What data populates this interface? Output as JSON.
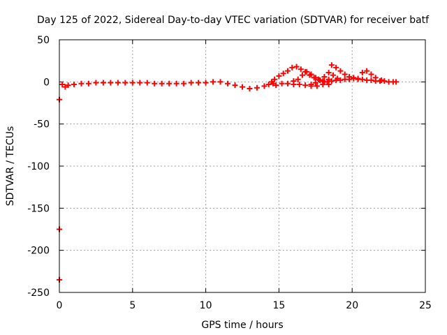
{
  "chart_data": {
    "type": "scatter",
    "title": "Day 125 of 2022, Sidereal Day-to-day VTEC variation (SDTVAR) for receiver batf",
    "xlabel": "GPS time / hours",
    "ylabel": "SDTVAR / TECUs",
    "xlim": [
      0,
      25
    ],
    "ylim": [
      -250,
      50
    ],
    "xticks": [
      0,
      5,
      10,
      15,
      20,
      25
    ],
    "yticks": [
      -250,
      -200,
      -150,
      -100,
      -50,
      0,
      50
    ],
    "grid": true,
    "legend": "none",
    "series_color": "#ff0000",
    "series": [
      {
        "x": [
          0.0,
          0.0,
          0.0
        ],
        "y": [
          -21,
          -175,
          -235
        ]
      },
      {
        "x": [
          0.2,
          0.4,
          0.6,
          1.0,
          1.5,
          2.0,
          2.5,
          3.0,
          3.5,
          4.0,
          4.5,
          5.0,
          5.5,
          6.0,
          6.5,
          7.0,
          7.5,
          8.0,
          8.5,
          9.0,
          9.5,
          10.0,
          10.5,
          11.0,
          11.5,
          12.0,
          12.5,
          13.0,
          13.5,
          14.0,
          14.3,
          14.6
        ],
        "y": [
          -3,
          -6,
          -4,
          -3,
          -2,
          -2,
          -1,
          -1,
          -1,
          -1,
          -1,
          -1,
          -1,
          -1,
          -2,
          -2,
          -2,
          -2,
          -2,
          -1,
          -1,
          -1,
          0,
          0,
          -2,
          -4,
          -6,
          -8,
          -7,
          -5,
          -3,
          -2
        ]
      },
      {
        "x": [
          14.5,
          14.7,
          15.0,
          15.3,
          15.6,
          15.9,
          16.2,
          16.5,
          16.8,
          17.1,
          17.4,
          17.7,
          18.0,
          18.3,
          18.6,
          18.9,
          19.2,
          19.5,
          19.8,
          20.1,
          20.4,
          20.7,
          21.0,
          21.3,
          21.6,
          21.9,
          22.2,
          22.5,
          22.8,
          23.0
        ],
        "y": [
          0,
          3,
          7,
          10,
          13,
          17,
          18,
          15,
          12,
          8,
          5,
          3,
          1,
          0,
          1,
          2,
          2,
          3,
          3,
          4,
          3,
          3,
          2,
          2,
          1,
          1,
          1,
          0,
          0,
          0
        ]
      },
      {
        "x": [
          14.8,
          15.2,
          15.6,
          16.0,
          16.4,
          16.8,
          17.2,
          17.6,
          18.0,
          18.4,
          18.6,
          18.9,
          19.2,
          19.5,
          19.8,
          20.1,
          20.4,
          20.7,
          21.0,
          21.3,
          21.6,
          22.0
        ],
        "y": [
          -4,
          -2,
          -2,
          -3,
          -3,
          -4,
          -5,
          -5,
          -3,
          3,
          20,
          17,
          13,
          9,
          6,
          5,
          4,
          11,
          13,
          9,
          5,
          2
        ]
      },
      {
        "x": [
          16.0,
          16.3,
          16.6,
          16.9,
          17.2,
          17.5,
          17.8,
          18.1,
          18.4
        ],
        "y": [
          1,
          3,
          8,
          12,
          9,
          5,
          2,
          0,
          -3
        ]
      },
      {
        "x": [
          17.2,
          17.5,
          17.8,
          18.1,
          18.4,
          18.7,
          19.0
        ],
        "y": [
          -3,
          -1,
          2,
          6,
          11,
          8,
          4
        ]
      }
    ]
  }
}
